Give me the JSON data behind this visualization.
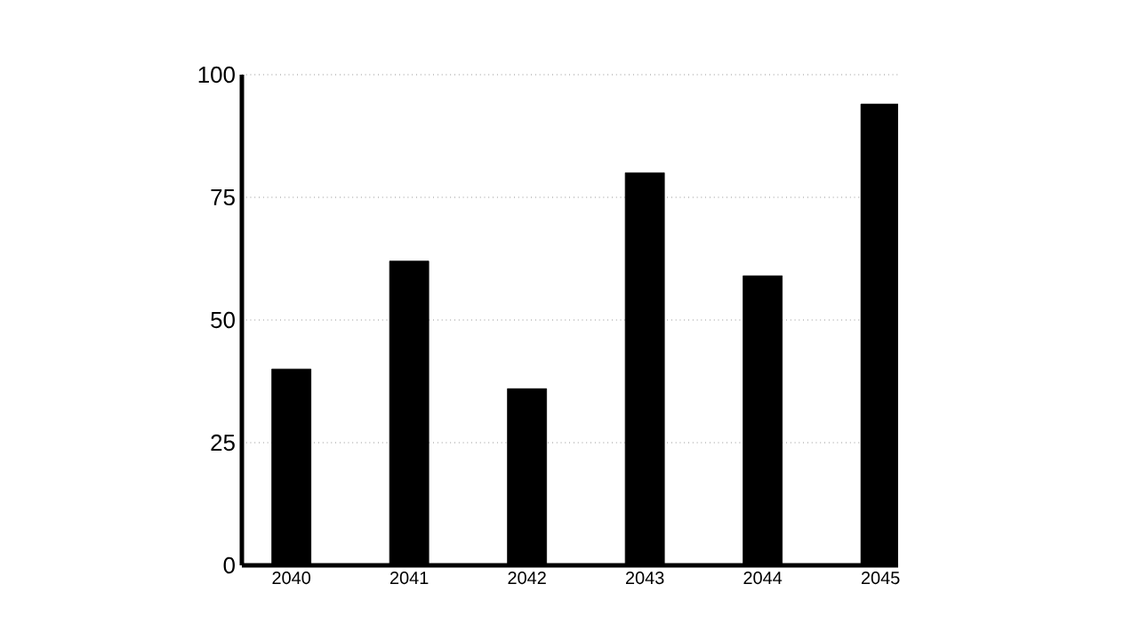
{
  "chart_data": {
    "type": "bar",
    "categories": [
      "2040",
      "2041",
      "2042",
      "2043",
      "2044",
      "2045"
    ],
    "values": [
      40,
      62,
      36,
      80,
      59,
      94
    ],
    "color": "#000000",
    "ylim": [
      0,
      100
    ],
    "yticks": [
      0,
      25,
      50,
      75,
      100
    ],
    "grid": "y"
  }
}
